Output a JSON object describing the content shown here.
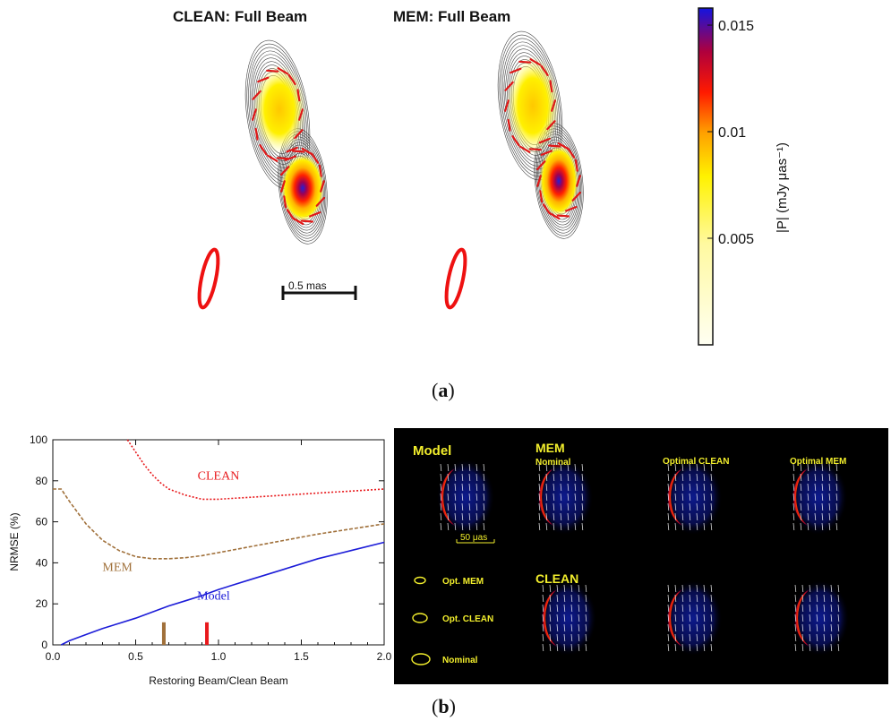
{
  "figure_a": {
    "title_clean": "CLEAN: Full Beam",
    "title_mem": "MEM: Full Beam",
    "scale_label": "0.5 mas",
    "colorbar": {
      "label": "|P|  (mJy μas⁻¹)",
      "ticks": [
        "0.015",
        "0.01",
        "0.005"
      ],
      "tick_values": [
        0.015,
        0.01,
        0.005
      ],
      "range": [
        0,
        0.0158
      ]
    },
    "caption_open": "(",
    "caption_letter": "a",
    "caption_close": ")"
  },
  "figure_b": {
    "caption_open": "(",
    "caption_letter": "b",
    "caption_close": ")",
    "labels": {
      "model": "Model",
      "mem": "MEM",
      "nominal": "Nominal",
      "opt_clean": "Optimal CLEAN",
      "opt_mem": "Optimal MEM",
      "clean": "CLEAN",
      "scale": "50 μas",
      "legend_opt_mem": "Opt. MEM",
      "legend_opt_clean": "Opt. CLEAN",
      "legend_nominal": "Nominal"
    }
  },
  "chart_data": {
    "type": "line",
    "title": "",
    "xlabel": "Restoring Beam/Clean Beam",
    "ylabel": "NRMSE (%)",
    "xlim": [
      0.0,
      2.0
    ],
    "ylim": [
      0,
      100
    ],
    "xticks": [
      "0.0",
      "0.5",
      "1.0",
      "1.5",
      "2.0"
    ],
    "xtick_values": [
      0.0,
      0.5,
      1.0,
      1.5,
      2.0
    ],
    "yticks": [
      "0",
      "20",
      "40",
      "60",
      "80",
      "100"
    ],
    "ytick_values": [
      0,
      20,
      40,
      60,
      80,
      100
    ],
    "series": [
      {
        "name": "CLEAN",
        "color": "#e8191c",
        "dash": "dotted",
        "x": [
          0.45,
          0.5,
          0.55,
          0.6,
          0.65,
          0.7,
          0.8,
          0.9,
          1.0,
          1.2,
          1.4,
          1.6,
          1.8,
          2.0
        ],
        "y": [
          100,
          94,
          88,
          83,
          79,
          76,
          73,
          71,
          71,
          72,
          73,
          74,
          75,
          76
        ]
      },
      {
        "name": "MEM",
        "color": "#a0703a",
        "dash": "dashed",
        "x": [
          0.0,
          0.05,
          0.1,
          0.2,
          0.3,
          0.4,
          0.5,
          0.6,
          0.7,
          0.8,
          0.9,
          1.0,
          1.2,
          1.4,
          1.6,
          1.8,
          2.0
        ],
        "y": [
          76,
          76,
          70,
          59,
          51,
          46,
          43,
          42,
          42,
          42.5,
          43.5,
          45,
          48,
          51,
          54,
          56.5,
          59
        ]
      },
      {
        "name": "Model",
        "color": "#1c1cd8",
        "dash": "solid",
        "x": [
          0.05,
          0.1,
          0.2,
          0.3,
          0.4,
          0.5,
          0.6,
          0.7,
          0.8,
          0.9,
          1.0,
          1.2,
          1.4,
          1.6,
          1.8,
          2.0
        ],
        "y": [
          0,
          2,
          5,
          8,
          10.5,
          13,
          16,
          19,
          21.5,
          24,
          27,
          32,
          37,
          42,
          46,
          50
        ]
      }
    ],
    "annotations": [
      {
        "text": "CLEAN",
        "x": 1.0,
        "y": 80.5,
        "color": "#e8191c"
      },
      {
        "text": "MEM",
        "x": 0.39,
        "y": 36,
        "color": "#a0703a"
      },
      {
        "text": "Model",
        "x": 0.97,
        "y": 22,
        "color": "#1c1cd8"
      }
    ],
    "markers": [
      {
        "x": 0.67,
        "height": 11,
        "color": "#a0703a"
      },
      {
        "x": 0.93,
        "height": 11,
        "color": "#e8191c"
      }
    ]
  }
}
